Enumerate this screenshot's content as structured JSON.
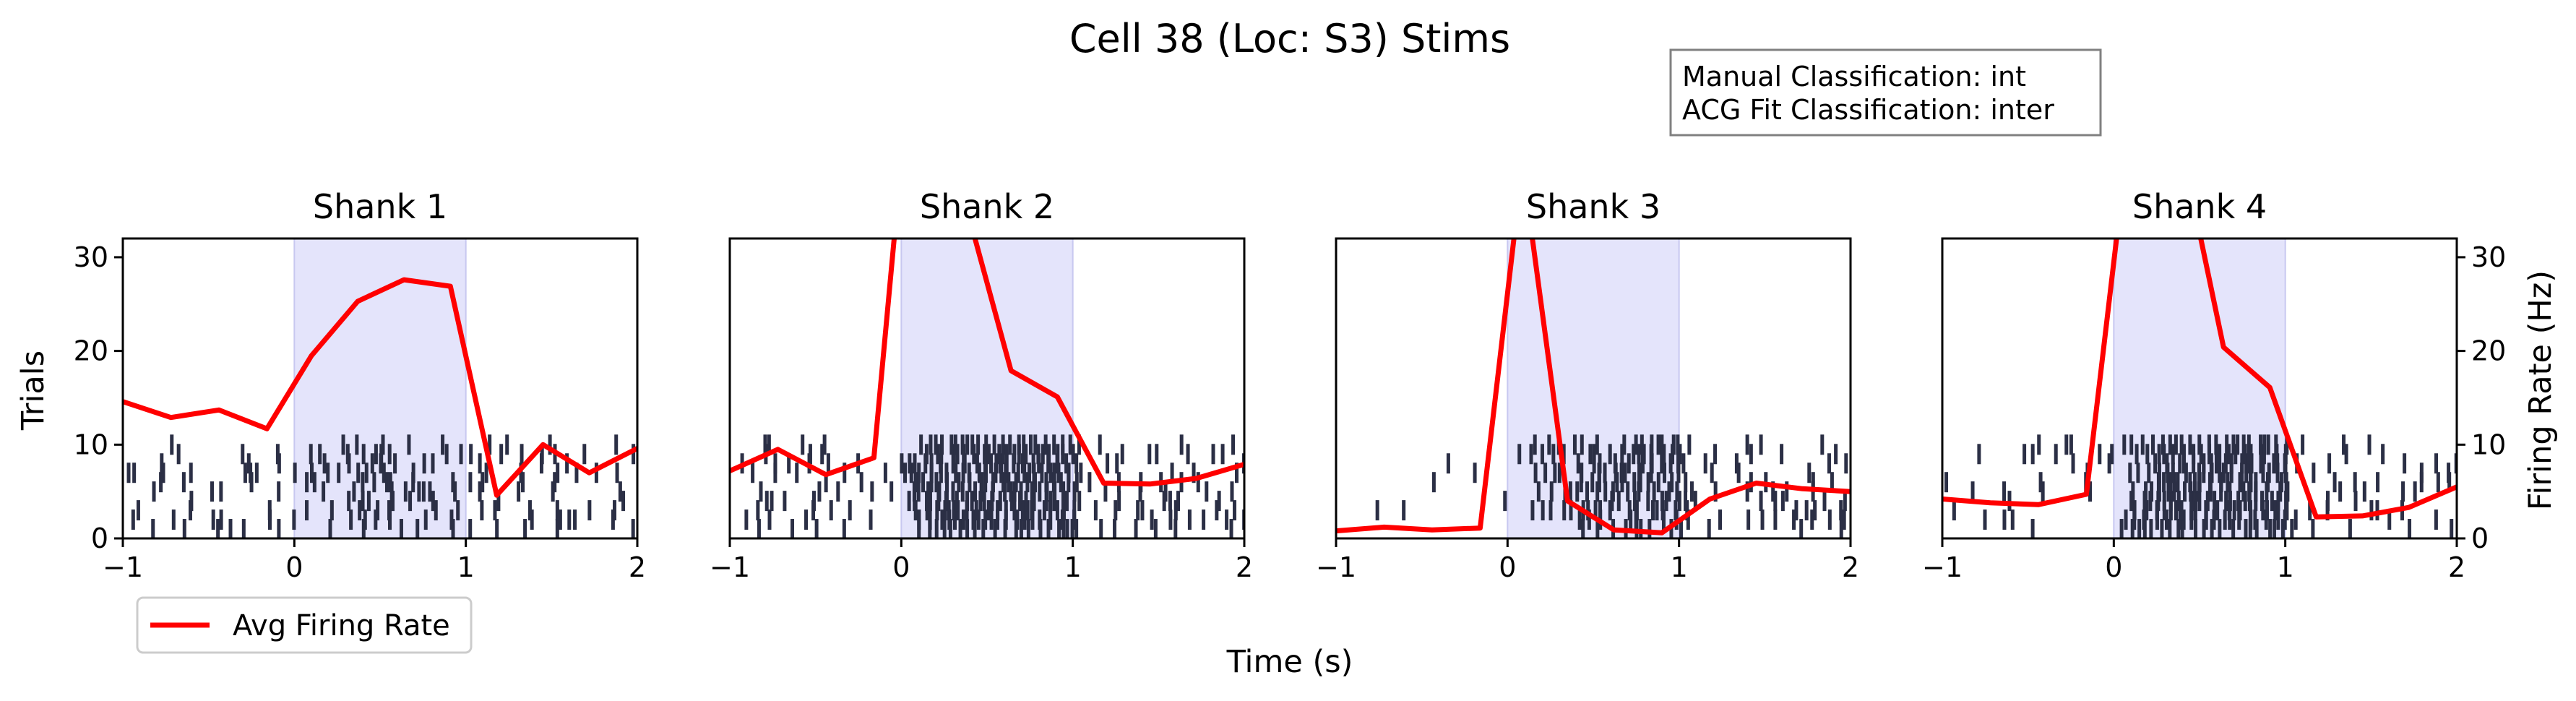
{
  "figure": {
    "title": "Cell 38 (Loc: S3) Stims",
    "xlabel": "Time (s)",
    "ylabel_left": "Trials",
    "ylabel_right": "Firing Rate (Hz)",
    "classification_lines": [
      "Manual Classification: int",
      "ACG Fit Classification: inter"
    ],
    "legend_label": "Avg Firing Rate"
  },
  "colors": {
    "raster": "#2b2f45",
    "rate_line": "#ff0000",
    "stim_fill": "#e4e4fb",
    "stim_edge": "#c8c8f0"
  },
  "chart_data": [
    {
      "type": "line",
      "title": "Shank 1",
      "xlim": [
        -1,
        2
      ],
      "ylim": [
        0,
        32
      ],
      "xticks": [
        "−1",
        "0",
        "1",
        "2"
      ],
      "yticks": [
        "0",
        "10",
        "20",
        "30"
      ],
      "stim_window": [
        0,
        1
      ],
      "raster_trials": 10,
      "raster_density": [
        0.55,
        0.9,
        0.55
      ],
      "series": [
        {
          "name": "Avg Firing Rate",
          "x": [
            -1.0,
            -0.72,
            -0.44,
            -0.16,
            0.1,
            0.37,
            0.64,
            0.91,
            1.18,
            1.45,
            1.72,
            2.0
          ],
          "y": [
            14.6,
            12.9,
            13.7,
            11.7,
            19.5,
            25.3,
            27.6,
            26.9,
            4.6,
            10.0,
            7.0,
            9.6
          ]
        }
      ]
    },
    {
      "type": "line",
      "title": "Shank 2",
      "xlim": [
        -1,
        2
      ],
      "ylim": [
        0,
        32
      ],
      "xticks": [
        "−1",
        "0",
        "1",
        "2"
      ],
      "yticks": [],
      "stim_window": [
        0,
        1
      ],
      "raster_trials": 10,
      "raster_density": [
        0.6,
        2.2,
        0.65
      ],
      "series": [
        {
          "name": "Avg Firing Rate",
          "x": [
            -1.0,
            -0.72,
            -0.44,
            -0.16,
            0.1,
            0.37,
            0.64,
            0.91,
            1.18,
            1.45,
            1.72,
            2.0
          ],
          "y": [
            7.2,
            9.5,
            6.8,
            8.6,
            60,
            36,
            17.9,
            15.1,
            5.9,
            5.8,
            6.4,
            7.9
          ]
        }
      ]
    },
    {
      "type": "line",
      "title": "Shank 3",
      "xlim": [
        -1,
        2
      ],
      "ylim": [
        0,
        32
      ],
      "xticks": [
        "−1",
        "0",
        "1",
        "2"
      ],
      "yticks": [],
      "stim_window": [
        0,
        1
      ],
      "raster_trials": 10,
      "raster_density": [
        0.12,
        1.6,
        0.55
      ],
      "series": [
        {
          "name": "Avg Firing Rate",
          "x": [
            -1.0,
            -0.72,
            -0.44,
            -0.16,
            0.05,
            0.13,
            0.35,
            0.62,
            0.9,
            1.18,
            1.45,
            1.72,
            2.0
          ],
          "y": [
            0.8,
            1.2,
            0.9,
            1.1,
            34,
            34,
            4.0,
            0.9,
            0.6,
            4.2,
            5.9,
            5.3,
            5.0
          ]
        }
      ]
    },
    {
      "type": "line",
      "title": "Shank 4",
      "xlim": [
        -1,
        2
      ],
      "ylim": [
        0,
        32
      ],
      "xticks": [
        "−1",
        "0",
        "1",
        "2"
      ],
      "yticks": [
        "0",
        "10",
        "20",
        "30"
      ],
      "stim_window": [
        0,
        1
      ],
      "raster_trials": 10,
      "raster_density": [
        0.45,
        2.0,
        0.5
      ],
      "series": [
        {
          "name": "Avg Firing Rate",
          "x": [
            -1.0,
            -0.72,
            -0.44,
            -0.16,
            0.1,
            0.37,
            0.64,
            0.91,
            1.18,
            1.45,
            1.72,
            2.0
          ],
          "y": [
            4.2,
            3.8,
            3.6,
            4.7,
            45,
            44,
            20.4,
            16.1,
            2.3,
            2.4,
            3.3,
            5.5
          ]
        }
      ]
    }
  ]
}
